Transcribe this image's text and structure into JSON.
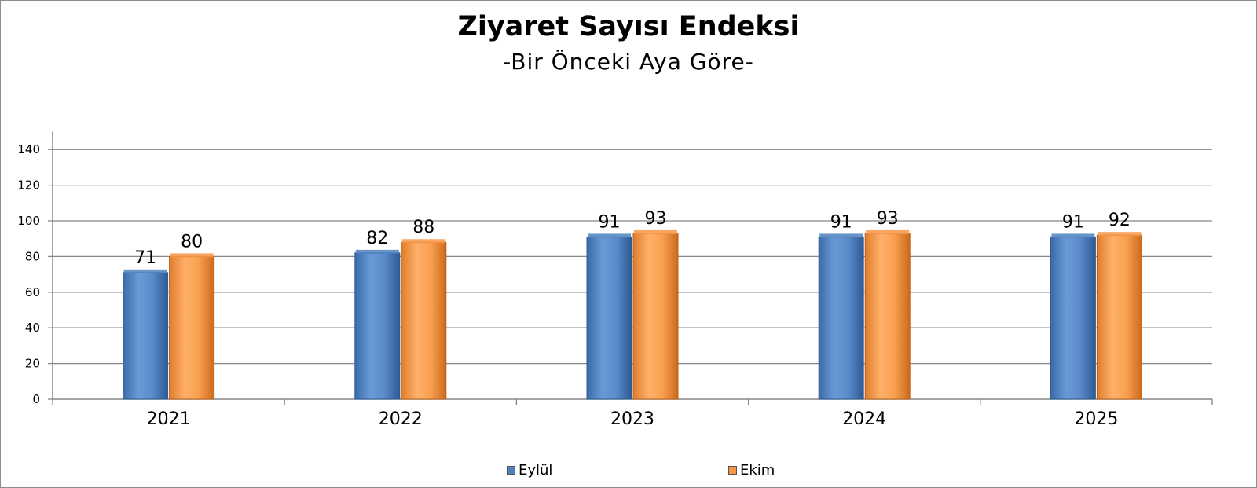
{
  "chart_data": {
    "type": "bar",
    "title": "Ziyaret Sayısı Endeksi",
    "subtitle": "-Bir Önceki Aya Göre-",
    "categories": [
      "2021",
      "2022",
      "2023",
      "2024",
      "2025"
    ],
    "series": [
      {
        "name": "Eylül",
        "values": [
          71,
          82,
          91,
          91,
          91
        ],
        "labels": [
          "71",
          "82",
          "91",
          "91",
          "91"
        ],
        "color": "#4f81bd"
      },
      {
        "name": "Ekim",
        "values": [
          80,
          88,
          93,
          93,
          92
        ],
        "labels": [
          "80",
          "88",
          "93",
          "93",
          "92"
        ],
        "color": "#f79646"
      }
    ],
    "yticks": [
      0,
      20,
      40,
      60,
      80,
      100,
      120,
      140
    ],
    "ylim": [
      0,
      150
    ],
    "xlabel": "",
    "ylabel": "",
    "grid": true,
    "legend_position": "bottom"
  }
}
